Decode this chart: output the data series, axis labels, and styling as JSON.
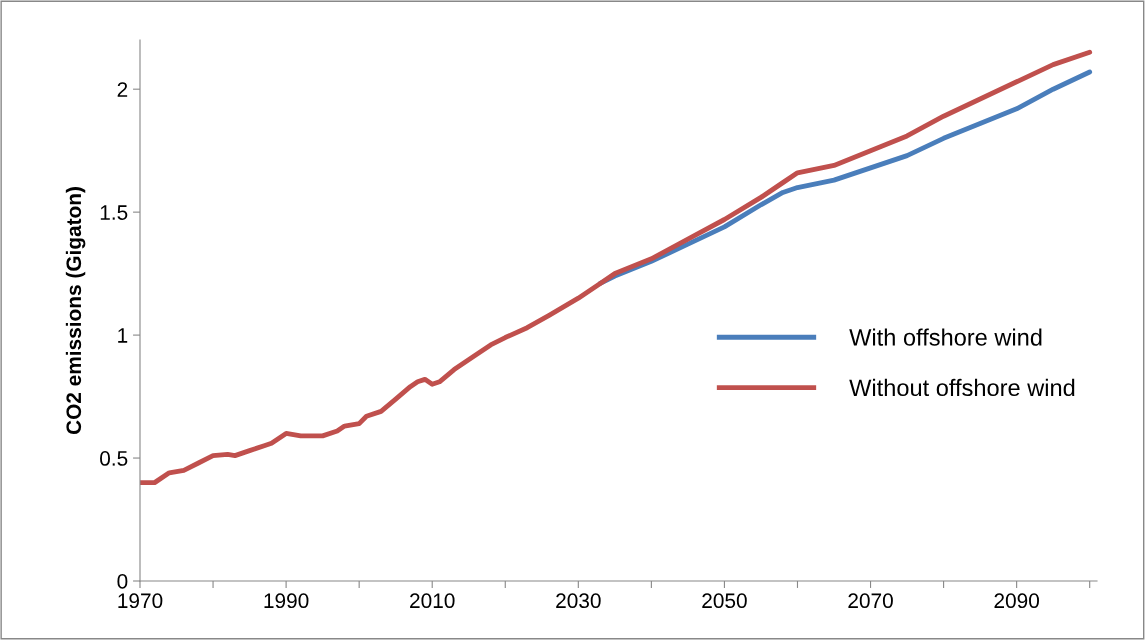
{
  "chart_data": {
    "type": "line",
    "ylabel": "CO2 emissions (Gigaton)",
    "xlim": [
      1970,
      2101
    ],
    "ylim": [
      0,
      2.2
    ],
    "xticks": [
      1970,
      {
        "value": 1980,
        "label": null
      },
      1990,
      {
        "value": 2000,
        "label": null
      },
      2010,
      {
        "value": 2020,
        "label": null
      },
      2030,
      {
        "value": 2040,
        "label": null
      },
      2050,
      {
        "value": 2060,
        "label": null
      },
      2070,
      {
        "value": 2080,
        "label": null
      },
      2090,
      {
        "value": 2100,
        "label": null
      }
    ],
    "yticks": [
      0,
      0.5,
      1,
      1.5,
      2
    ],
    "grid": false,
    "legend": "right",
    "marker": "none",
    "line_style": "solid",
    "series": [
      {
        "name": "With offshore wind",
        "color": "#4a7ebb",
        "x": [
          2033,
          2035,
          2040,
          2045,
          2050,
          2055,
          2058,
          2060,
          2065,
          2070,
          2075,
          2080,
          2085,
          2090,
          2095,
          2100
        ],
        "values": [
          1.21,
          1.24,
          1.3,
          1.37,
          1.44,
          1.53,
          1.58,
          1.6,
          1.63,
          1.68,
          1.73,
          1.8,
          1.86,
          1.92,
          2.0,
          2.07
        ]
      },
      {
        "name": "Without offshore wind",
        "color": "#c0504d",
        "x": [
          1970,
          1972,
          1974,
          1976,
          1978,
          1980,
          1982,
          1983,
          1985,
          1987,
          1988,
          1990,
          1992,
          1995,
          1997,
          1998,
          2000,
          2001,
          2003,
          2005,
          2007,
          2008,
          2009,
          2010,
          2011,
          2013,
          2016,
          2018,
          2020,
          2023,
          2026,
          2030,
          2033,
          2035,
          2040,
          2045,
          2050,
          2055,
          2058,
          2060,
          2065,
          2070,
          2075,
          2080,
          2085,
          2090,
          2095,
          2100
        ],
        "values": [
          0.4,
          0.4,
          0.44,
          0.45,
          0.48,
          0.51,
          0.515,
          0.51,
          0.53,
          0.55,
          0.56,
          0.6,
          0.59,
          0.59,
          0.61,
          0.63,
          0.64,
          0.67,
          0.69,
          0.74,
          0.79,
          0.81,
          0.82,
          0.8,
          0.81,
          0.86,
          0.92,
          0.96,
          0.99,
          1.03,
          1.08,
          1.15,
          1.21,
          1.25,
          1.31,
          1.39,
          1.47,
          1.56,
          1.62,
          1.66,
          1.69,
          1.75,
          1.81,
          1.89,
          1.96,
          2.03,
          2.1,
          2.15
        ]
      }
    ]
  }
}
